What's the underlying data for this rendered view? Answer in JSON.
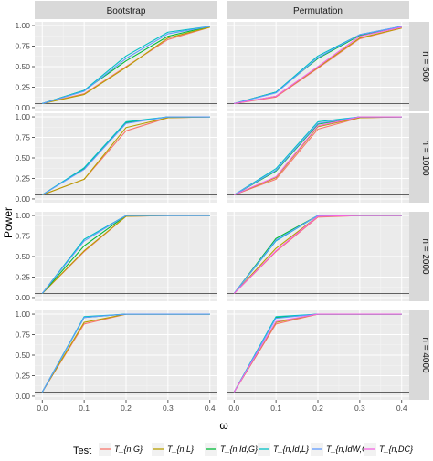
{
  "chart_data": {
    "type": "line",
    "xlabel": "ω",
    "ylabel": "Power",
    "x": [
      0.0,
      0.1,
      0.2,
      0.3,
      0.4
    ],
    "x_ticks": [
      "0.0",
      "0.1",
      "0.2",
      "0.3",
      "0.4"
    ],
    "y_ticks": [
      "0.00",
      "0.25",
      "0.50",
      "0.75",
      "1.00"
    ],
    "ylim": [
      0,
      1.0
    ],
    "xlim": [
      0.0,
      0.4
    ],
    "reference_line_y": 0.05,
    "columns": [
      "Bootstrap",
      "Permutation"
    ],
    "rows": [
      "n = 500",
      "n = 1000",
      "n = 2000",
      "n = 4000"
    ],
    "legend": {
      "title": "Test",
      "placement": "bottom",
      "entries": [
        {
          "key": "TnG",
          "label": "T_{n,G}",
          "color": "#F8766D"
        },
        {
          "key": "TnL",
          "label": "T_{n,L}",
          "color": "#B79F00"
        },
        {
          "key": "TnIdG",
          "label": "T_{n,Id,G}",
          "color": "#00BA38"
        },
        {
          "key": "TnIdL",
          "label": "T_{n,Id,L}",
          "color": "#00BFC4"
        },
        {
          "key": "TnIdWG",
          "label": "T_{n,IdW,G}",
          "color": "#619CFF"
        },
        {
          "key": "TnDC",
          "label": "T_{n,DC}",
          "color": "#F564E3"
        }
      ]
    },
    "panels": [
      {
        "column": "Bootstrap",
        "row": "n = 500",
        "series": [
          {
            "key": "TnG",
            "values": [
              0.05,
              0.17,
              0.5,
              0.83,
              0.98
            ]
          },
          {
            "key": "TnL",
            "values": [
              0.05,
              0.16,
              0.49,
              0.85,
              0.98
            ]
          },
          {
            "key": "TnIdG",
            "values": [
              0.05,
              0.21,
              0.57,
              0.87,
              0.99
            ]
          },
          {
            "key": "TnIdL",
            "values": [
              0.05,
              0.21,
              0.63,
              0.92,
              0.99
            ]
          },
          {
            "key": "TnIdWG",
            "values": [
              0.05,
              0.2,
              0.6,
              0.9,
              0.99
            ]
          }
        ]
      },
      {
        "column": "Permutation",
        "row": "n = 500",
        "series": [
          {
            "key": "TnG",
            "values": [
              0.05,
              0.13,
              0.48,
              0.84,
              0.97
            ]
          },
          {
            "key": "TnL",
            "values": [
              0.05,
              0.14,
              0.49,
              0.85,
              0.97
            ]
          },
          {
            "key": "TnIdG",
            "values": [
              0.05,
              0.19,
              0.6,
              0.88,
              0.99
            ]
          },
          {
            "key": "TnIdL",
            "values": [
              0.05,
              0.19,
              0.63,
              0.89,
              0.99
            ]
          },
          {
            "key": "TnIdWG",
            "values": [
              0.05,
              0.18,
              0.61,
              0.89,
              0.99
            ]
          },
          {
            "key": "TnDC",
            "values": [
              0.05,
              0.14,
              0.5,
              0.87,
              0.98
            ]
          }
        ]
      },
      {
        "column": "Bootstrap",
        "row": "n = 1000",
        "series": [
          {
            "key": "TnG",
            "values": [
              0.05,
              0.24,
              0.83,
              0.99,
              1.0
            ]
          },
          {
            "key": "TnL",
            "values": [
              0.05,
              0.24,
              0.87,
              0.99,
              1.0
            ]
          },
          {
            "key": "TnIdG",
            "values": [
              0.05,
              0.37,
              0.93,
              1.0,
              1.0
            ]
          },
          {
            "key": "TnIdL",
            "values": [
              0.05,
              0.38,
              0.94,
              1.0,
              1.0
            ]
          },
          {
            "key": "TnIdWG",
            "values": [
              0.05,
              0.36,
              0.92,
              1.0,
              1.0
            ]
          }
        ]
      },
      {
        "column": "Permutation",
        "row": "n = 1000",
        "series": [
          {
            "key": "TnG",
            "values": [
              0.05,
              0.24,
              0.85,
              0.99,
              1.0
            ]
          },
          {
            "key": "TnL",
            "values": [
              0.05,
              0.26,
              0.88,
              0.99,
              1.0
            ]
          },
          {
            "key": "TnIdG",
            "values": [
              0.05,
              0.34,
              0.91,
              1.0,
              1.0
            ]
          },
          {
            "key": "TnIdL",
            "values": [
              0.05,
              0.37,
              0.94,
              1.0,
              1.0
            ]
          },
          {
            "key": "TnIdWG",
            "values": [
              0.05,
              0.35,
              0.92,
              1.0,
              1.0
            ]
          },
          {
            "key": "TnDC",
            "values": [
              0.05,
              0.27,
              0.89,
              1.0,
              1.0
            ]
          }
        ]
      },
      {
        "column": "Bootstrap",
        "row": "n = 2000",
        "series": [
          {
            "key": "TnG",
            "values": [
              0.05,
              0.56,
              0.99,
              1.0,
              1.0
            ]
          },
          {
            "key": "TnL",
            "values": [
              0.05,
              0.57,
              0.99,
              1.0,
              1.0
            ]
          },
          {
            "key": "TnIdG",
            "values": [
              0.05,
              0.63,
              1.0,
              1.0,
              1.0
            ]
          },
          {
            "key": "TnIdL",
            "values": [
              0.05,
              0.71,
              1.0,
              1.0,
              1.0
            ]
          },
          {
            "key": "TnIdWG",
            "values": [
              0.05,
              0.69,
              1.0,
              1.0,
              1.0
            ]
          }
        ]
      },
      {
        "column": "Permutation",
        "row": "n = 2000",
        "series": [
          {
            "key": "TnG",
            "values": [
              0.05,
              0.56,
              0.98,
              1.0,
              1.0
            ]
          },
          {
            "key": "TnL",
            "values": [
              0.05,
              0.6,
              0.99,
              1.0,
              1.0
            ]
          },
          {
            "key": "TnIdG",
            "values": [
              0.05,
              0.72,
              1.0,
              1.0,
              1.0
            ]
          },
          {
            "key": "TnIdL",
            "values": [
              0.05,
              0.69,
              1.0,
              1.0,
              1.0
            ]
          },
          {
            "key": "TnIdWG",
            "values": [
              0.05,
              0.7,
              1.0,
              1.0,
              1.0
            ]
          },
          {
            "key": "TnDC",
            "values": [
              0.05,
              0.57,
              0.99,
              1.0,
              1.0
            ]
          }
        ]
      },
      {
        "column": "Bootstrap",
        "row": "n = 4000",
        "series": [
          {
            "key": "TnG",
            "values": [
              0.05,
              0.88,
              1.0,
              1.0,
              1.0
            ]
          },
          {
            "key": "TnL",
            "values": [
              0.05,
              0.9,
              1.0,
              1.0,
              1.0
            ]
          },
          {
            "key": "TnIdG",
            "values": [
              0.05,
              0.96,
              1.0,
              1.0,
              1.0
            ]
          },
          {
            "key": "TnIdL",
            "values": [
              0.05,
              0.97,
              1.0,
              1.0,
              1.0
            ]
          },
          {
            "key": "TnIdWG",
            "values": [
              0.05,
              0.96,
              1.0,
              1.0,
              1.0
            ]
          }
        ]
      },
      {
        "column": "Permutation",
        "row": "n = 4000",
        "series": [
          {
            "key": "TnG",
            "values": [
              0.05,
              0.88,
              1.0,
              1.0,
              1.0
            ]
          },
          {
            "key": "TnL",
            "values": [
              0.05,
              0.9,
              1.0,
              1.0,
              1.0
            ]
          },
          {
            "key": "TnIdG",
            "values": [
              0.05,
              0.96,
              1.0,
              1.0,
              1.0
            ]
          },
          {
            "key": "TnIdL",
            "values": [
              0.05,
              0.97,
              1.0,
              1.0,
              1.0
            ]
          },
          {
            "key": "TnIdWG",
            "values": [
              0.05,
              0.95,
              1.0,
              1.0,
              1.0
            ]
          },
          {
            "key": "TnDC",
            "values": [
              0.05,
              0.91,
              1.0,
              1.0,
              1.0
            ]
          }
        ]
      }
    ],
    "grid": true
  }
}
